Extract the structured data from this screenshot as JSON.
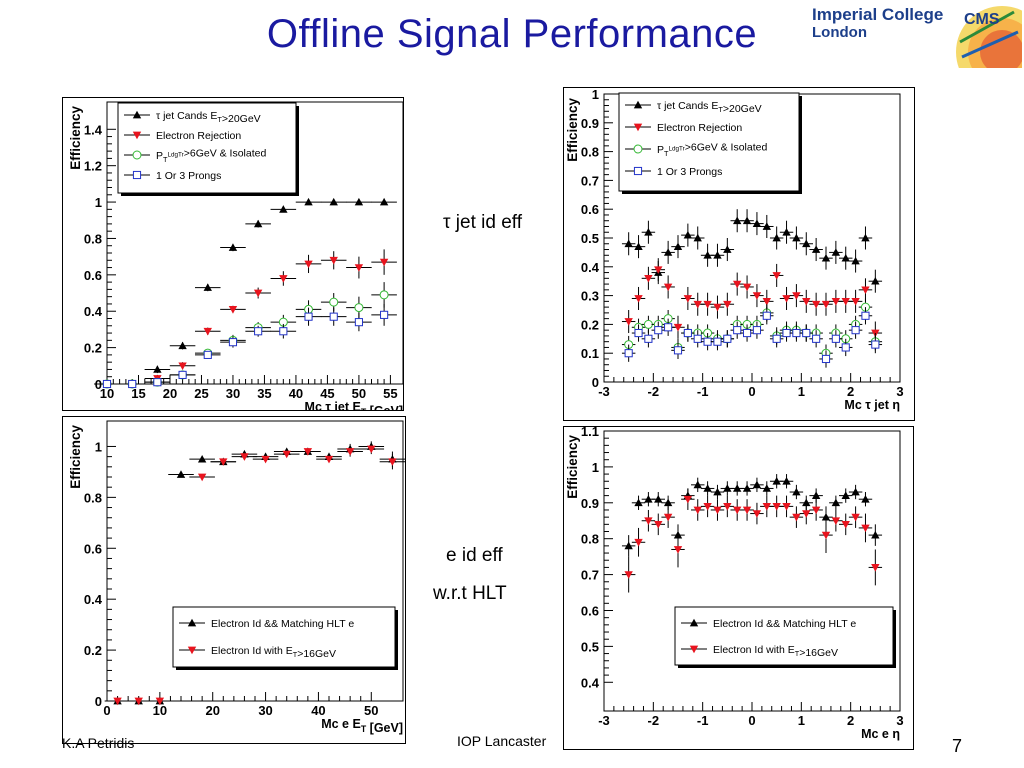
{
  "slide": {
    "title": "Offline Signal Performance",
    "logo_line1": "Imperial College",
    "logo_line2": "London",
    "cms_logo_text": "CMS",
    "annotation_tau": "τ jet  id eff",
    "annotation_e1": "e id eff",
    "annotation_e2": "w.r.t HLT",
    "footer_left": "K.A Petridis",
    "footer_center": "IOP Lancaster",
    "page_number": "7"
  },
  "chart_data": [
    {
      "type": "scatter",
      "panel": "tau-et",
      "xlabel": "Mc τ jet E_T [GeV]",
      "ylabel": "Efficiency",
      "xlim": [
        10,
        57
      ],
      "ylim": [
        0,
        1.55
      ],
      "xticks": [
        10,
        15,
        20,
        25,
        30,
        35,
        40,
        45,
        50,
        55
      ],
      "yticks": [
        0,
        0.2,
        0.4,
        0.6,
        0.8,
        1,
        1.2,
        1.4
      ],
      "ytick_labels": [
        "0",
        "0.2",
        "0.4",
        "0.6",
        "0.8",
        "1",
        "1.2",
        "1.4"
      ],
      "legend_position": "top-left",
      "series": [
        {
          "name": "τ jet Cands E_T>20GeV",
          "marker": "triangle-up",
          "color": "#000000",
          "x": [
            10,
            14,
            18,
            22,
            26,
            30,
            34,
            38,
            42,
            46,
            50,
            54
          ],
          "y": [
            0,
            0,
            0.08,
            0.21,
            0.53,
            0.75,
            0.88,
            0.96,
            1.0,
            1.0,
            1.0,
            1.0
          ],
          "err": [
            0.02,
            0.02,
            0.02,
            0.02,
            0.02,
            0.02,
            0.02,
            0.01,
            0.01,
            0.01,
            0.01,
            0.01
          ]
        },
        {
          "name": "Electron Rejection",
          "marker": "triangle-down",
          "color": "#e8141e",
          "x": [
            10,
            14,
            18,
            22,
            26,
            30,
            34,
            38,
            42,
            46,
            50,
            54
          ],
          "y": [
            0,
            0,
            0.03,
            0.1,
            0.29,
            0.41,
            0.5,
            0.58,
            0.66,
            0.68,
            0.64,
            0.67
          ],
          "err": [
            0.02,
            0.02,
            0.02,
            0.02,
            0.02,
            0.02,
            0.03,
            0.04,
            0.05,
            0.05,
            0.06,
            0.07
          ]
        },
        {
          "name": "P_T^LdgTr>6GeV & Isolated",
          "marker": "circle-open",
          "color": "#33b833",
          "x": [
            10,
            14,
            18,
            22,
            26,
            30,
            34,
            38,
            42,
            46,
            50,
            54
          ],
          "y": [
            0,
            0,
            0.01,
            0.05,
            0.17,
            0.24,
            0.31,
            0.34,
            0.41,
            0.45,
            0.42,
            0.49
          ],
          "err": [
            0.02,
            0.02,
            0.02,
            0.02,
            0.02,
            0.03,
            0.03,
            0.04,
            0.05,
            0.05,
            0.06,
            0.07
          ]
        },
        {
          "name": "1 Or 3 Prongs",
          "marker": "square-open",
          "color": "#2233c8",
          "x": [
            10,
            14,
            18,
            22,
            26,
            30,
            34,
            38,
            42,
            46,
            50,
            54
          ],
          "y": [
            0,
            0,
            0.01,
            0.05,
            0.16,
            0.23,
            0.29,
            0.29,
            0.37,
            0.37,
            0.34,
            0.38
          ],
          "err": [
            0.02,
            0.02,
            0.02,
            0.02,
            0.02,
            0.03,
            0.03,
            0.04,
            0.05,
            0.05,
            0.05,
            0.06
          ]
        }
      ]
    },
    {
      "type": "scatter",
      "panel": "tau-eta",
      "xlabel": "Mc τ jet η",
      "ylabel": "Efficiency",
      "xlim": [
        -3,
        3
      ],
      "ylim": [
        0,
        1
      ],
      "xticks": [
        -3,
        -2,
        -1,
        0,
        1,
        2,
        3
      ],
      "yticks": [
        0,
        0.1,
        0.2,
        0.3,
        0.4,
        0.5,
        0.6,
        0.7,
        0.8,
        0.9,
        1
      ],
      "ytick_labels": [
        "0",
        "0.1",
        "0.2",
        "0.3",
        "0.4",
        "0.5",
        "0.6",
        "0.7",
        "0.8",
        "0.9",
        "1"
      ],
      "legend_position": "top-left",
      "series": [
        {
          "name": "τ jet Cands E_T>20GeV",
          "marker": "triangle-up",
          "color": "#000000",
          "x": [
            -2.5,
            -2.3,
            -2.1,
            -1.9,
            -1.7,
            -1.5,
            -1.3,
            -1.1,
            -0.9,
            -0.7,
            -0.5,
            -0.3,
            -0.1,
            0.1,
            0.3,
            0.5,
            0.7,
            0.9,
            1.1,
            1.3,
            1.5,
            1.7,
            1.9,
            2.1,
            2.3,
            2.5
          ],
          "y": [
            0.48,
            0.47,
            0.52,
            0.38,
            0.45,
            0.47,
            0.51,
            0.5,
            0.44,
            0.44,
            0.46,
            0.56,
            0.56,
            0.55,
            0.54,
            0.5,
            0.52,
            0.5,
            0.48,
            0.46,
            0.43,
            0.45,
            0.43,
            0.42,
            0.5,
            0.35
          ],
          "err": [
            0.04,
            0.04,
            0.04,
            0.04,
            0.04,
            0.04,
            0.04,
            0.04,
            0.04,
            0.04,
            0.04,
            0.04,
            0.04,
            0.04,
            0.04,
            0.04,
            0.04,
            0.04,
            0.04,
            0.04,
            0.04,
            0.04,
            0.04,
            0.04,
            0.04,
            0.04
          ]
        },
        {
          "name": "Electron Rejection",
          "marker": "triangle-down",
          "color": "#e8141e",
          "x": [
            -2.5,
            -2.3,
            -2.1,
            -1.9,
            -1.7,
            -1.5,
            -1.3,
            -1.1,
            -0.9,
            -0.7,
            -0.5,
            -0.3,
            -0.1,
            0.1,
            0.3,
            0.5,
            0.7,
            0.9,
            1.1,
            1.3,
            1.5,
            1.7,
            1.9,
            2.1,
            2.3,
            2.5
          ],
          "y": [
            0.21,
            0.29,
            0.36,
            0.39,
            0.33,
            0.19,
            0.29,
            0.27,
            0.27,
            0.26,
            0.27,
            0.34,
            0.33,
            0.3,
            0.28,
            0.37,
            0.29,
            0.3,
            0.28,
            0.27,
            0.27,
            0.28,
            0.28,
            0.28,
            0.32,
            0.17
          ],
          "err": [
            0.04,
            0.04,
            0.04,
            0.04,
            0.04,
            0.04,
            0.04,
            0.04,
            0.04,
            0.04,
            0.04,
            0.04,
            0.04,
            0.04,
            0.04,
            0.04,
            0.04,
            0.04,
            0.04,
            0.04,
            0.04,
            0.04,
            0.04,
            0.04,
            0.04,
            0.04
          ]
        },
        {
          "name": "P_T^LdgTr>6GeV & Isolated",
          "marker": "circle-open",
          "color": "#33b833",
          "x": [
            -2.5,
            -2.3,
            -2.1,
            -1.9,
            -1.7,
            -1.5,
            -1.3,
            -1.1,
            -0.9,
            -0.7,
            -0.5,
            -0.3,
            -0.1,
            0.1,
            0.3,
            0.5,
            0.7,
            0.9,
            1.1,
            1.3,
            1.5,
            1.7,
            1.9,
            2.1,
            2.3,
            2.5
          ],
          "y": [
            0.13,
            0.19,
            0.2,
            0.2,
            0.22,
            0.12,
            0.17,
            0.17,
            0.17,
            0.15,
            0.15,
            0.2,
            0.2,
            0.2,
            0.24,
            0.16,
            0.18,
            0.18,
            0.17,
            0.17,
            0.1,
            0.17,
            0.15,
            0.2,
            0.26,
            0.14
          ],
          "err": [
            0.03,
            0.03,
            0.03,
            0.03,
            0.03,
            0.03,
            0.03,
            0.03,
            0.03,
            0.03,
            0.03,
            0.03,
            0.03,
            0.03,
            0.03,
            0.03,
            0.03,
            0.03,
            0.03,
            0.03,
            0.03,
            0.03,
            0.03,
            0.03,
            0.03,
            0.03
          ]
        },
        {
          "name": "1 Or 3 Prongs",
          "marker": "square-open",
          "color": "#2233c8",
          "x": [
            -2.5,
            -2.3,
            -2.1,
            -1.9,
            -1.7,
            -1.5,
            -1.3,
            -1.1,
            -0.9,
            -0.7,
            -0.5,
            -0.3,
            -0.1,
            0.1,
            0.3,
            0.5,
            0.7,
            0.9,
            1.1,
            1.3,
            1.5,
            1.7,
            1.9,
            2.1,
            2.3,
            2.5
          ],
          "y": [
            0.1,
            0.17,
            0.15,
            0.18,
            0.19,
            0.11,
            0.17,
            0.15,
            0.14,
            0.14,
            0.15,
            0.18,
            0.17,
            0.18,
            0.23,
            0.15,
            0.17,
            0.17,
            0.17,
            0.15,
            0.08,
            0.15,
            0.12,
            0.18,
            0.23,
            0.13
          ],
          "err": [
            0.03,
            0.03,
            0.03,
            0.03,
            0.03,
            0.03,
            0.03,
            0.03,
            0.03,
            0.03,
            0.03,
            0.03,
            0.03,
            0.03,
            0.03,
            0.03,
            0.03,
            0.03,
            0.03,
            0.03,
            0.03,
            0.03,
            0.03,
            0.03,
            0.03,
            0.03
          ]
        }
      ]
    },
    {
      "type": "scatter",
      "panel": "e-et",
      "xlabel": "Mc e E_T [GeV]",
      "ylabel": "Efficiency",
      "xlim": [
        0,
        56
      ],
      "ylim": [
        0,
        1.1
      ],
      "xticks": [
        0,
        10,
        20,
        30,
        40,
        50
      ],
      "yticks": [
        0,
        0.2,
        0.4,
        0.6,
        0.8,
        1
      ],
      "ytick_labels": [
        "0",
        "0.2",
        "0.4",
        "0.6",
        "0.8",
        "1"
      ],
      "legend_position": "bottom-right",
      "series": [
        {
          "name": "Electron Id && Matching HLT e",
          "marker": "triangle-up",
          "color": "#000000",
          "x": [
            2,
            6,
            10,
            14,
            18,
            22,
            26,
            30,
            34,
            38,
            42,
            46,
            50,
            54
          ],
          "y": [
            0,
            0,
            0,
            0.89,
            0.95,
            0.94,
            0.97,
            0.96,
            0.98,
            0.98,
            0.96,
            0.99,
            1.0,
            0.95
          ],
          "err": [
            0.01,
            0.01,
            0.01,
            0.01,
            0.01,
            0.01,
            0.01,
            0.01,
            0.01,
            0.01,
            0.01,
            0.02,
            0.02,
            0.03
          ]
        },
        {
          "name": "Electron Id with E_T>16GeV",
          "marker": "triangle-down",
          "color": "#e8141e",
          "x": [
            2,
            6,
            10,
            18,
            22,
            26,
            30,
            34,
            38,
            42,
            46,
            50,
            54
          ],
          "y": [
            0,
            0,
            0,
            0.88,
            0.94,
            0.96,
            0.95,
            0.97,
            0.98,
            0.95,
            0.98,
            0.99,
            0.94
          ],
          "err": [
            0.01,
            0.01,
            0.01,
            0.01,
            0.01,
            0.01,
            0.01,
            0.01,
            0.01,
            0.01,
            0.02,
            0.02,
            0.03
          ]
        }
      ]
    },
    {
      "type": "scatter",
      "panel": "e-eta",
      "xlabel": "Mc e η",
      "ylabel": "Efficiency",
      "xlim": [
        -3,
        3
      ],
      "ylim": [
        0.32,
        1.1
      ],
      "xticks": [
        -3,
        -2,
        -1,
        0,
        1,
        2,
        3
      ],
      "yticks": [
        0.4,
        0.5,
        0.6,
        0.7,
        0.8,
        0.9,
        1,
        1.1
      ],
      "ytick_labels": [
        "0.4",
        "0.5",
        "0.6",
        "0.7",
        "0.8",
        "0.9",
        "1",
        "1.1"
      ],
      "legend_position": "bottom-right",
      "series": [
        {
          "name": "Electron Id && Matching HLT e",
          "marker": "triangle-up",
          "color": "#000000",
          "x": [
            -2.5,
            -2.3,
            -2.1,
            -1.9,
            -1.7,
            -1.5,
            -1.3,
            -1.1,
            -0.9,
            -0.7,
            -0.5,
            -0.3,
            -0.1,
            0.1,
            0.3,
            0.5,
            0.7,
            0.9,
            1.1,
            1.3,
            1.5,
            1.7,
            1.9,
            2.1,
            2.3,
            2.5
          ],
          "y": [
            0.78,
            0.9,
            0.91,
            0.91,
            0.9,
            0.81,
            0.92,
            0.95,
            0.94,
            0.93,
            0.94,
            0.94,
            0.94,
            0.95,
            0.94,
            0.96,
            0.96,
            0.93,
            0.9,
            0.92,
            0.86,
            0.9,
            0.92,
            0.93,
            0.91,
            0.81
          ],
          "err": [
            0.03,
            0.02,
            0.02,
            0.02,
            0.02,
            0.03,
            0.02,
            0.02,
            0.02,
            0.02,
            0.02,
            0.02,
            0.02,
            0.02,
            0.02,
            0.02,
            0.02,
            0.02,
            0.02,
            0.02,
            0.03,
            0.02,
            0.02,
            0.02,
            0.02,
            0.03
          ]
        },
        {
          "name": "Electron Id with E_T>16GeV",
          "marker": "triangle-down",
          "color": "#e8141e",
          "x": [
            -2.5,
            -2.3,
            -2.1,
            -1.9,
            -1.7,
            -1.5,
            -1.3,
            -1.1,
            -0.9,
            -0.7,
            -0.5,
            -0.3,
            -0.1,
            0.1,
            0.3,
            0.5,
            0.7,
            0.9,
            1.1,
            1.3,
            1.5,
            1.7,
            1.9,
            2.1,
            2.3,
            2.5
          ],
          "y": [
            0.7,
            0.79,
            0.85,
            0.84,
            0.86,
            0.77,
            0.91,
            0.88,
            0.89,
            0.88,
            0.89,
            0.88,
            0.88,
            0.87,
            0.89,
            0.89,
            0.89,
            0.86,
            0.87,
            0.88,
            0.81,
            0.85,
            0.84,
            0.86,
            0.83,
            0.72
          ],
          "err": [
            0.05,
            0.04,
            0.03,
            0.03,
            0.03,
            0.05,
            0.03,
            0.03,
            0.03,
            0.03,
            0.03,
            0.03,
            0.03,
            0.03,
            0.03,
            0.03,
            0.03,
            0.03,
            0.03,
            0.03,
            0.05,
            0.03,
            0.03,
            0.03,
            0.04,
            0.05
          ]
        }
      ]
    }
  ]
}
